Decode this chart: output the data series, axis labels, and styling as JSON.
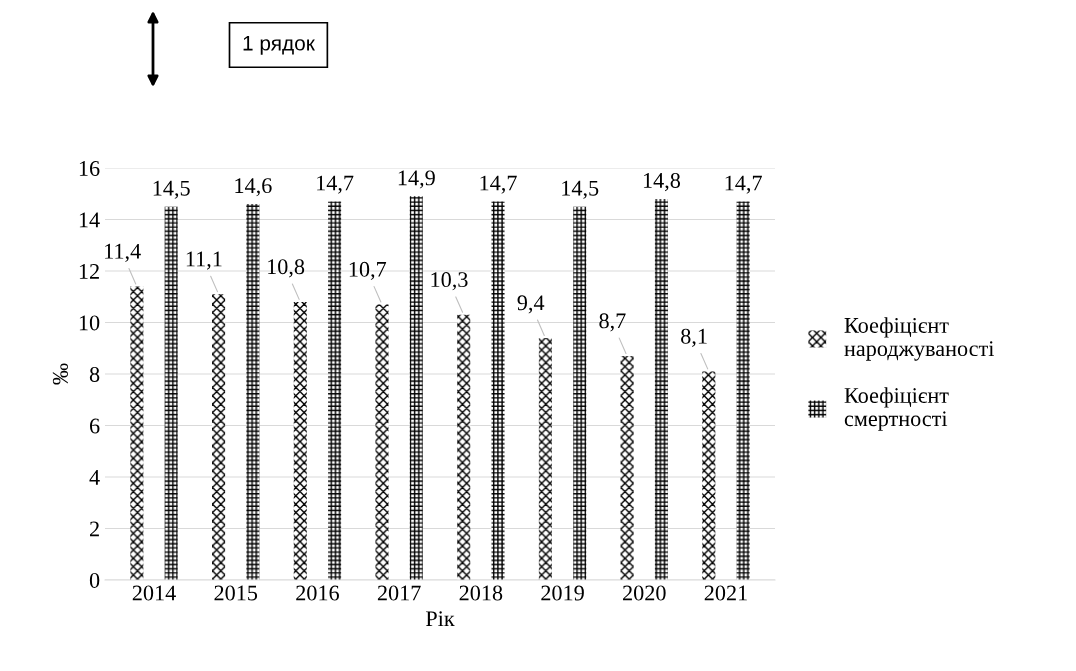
{
  "chart_data": {
    "type": "bar",
    "xlabel": "Рік",
    "ylabel": "‰",
    "categories": [
      "2014",
      "2015",
      "2016",
      "2017",
      "2018",
      "2019",
      "2020",
      "2021"
    ],
    "series": [
      {
        "name": "Коефіцієнт народжуваності",
        "color": "#000000",
        "values": [
          11.4,
          11.1,
          10.8,
          10.7,
          10.3,
          9.4,
          8.7,
          8.1
        ],
        "value_labels": [
          "11,4",
          "11,1",
          "10,8",
          "10,7",
          "10,3",
          "9,4",
          "8,7",
          "8,1"
        ]
      },
      {
        "name": "Коефіцієнт смертності",
        "color": "#000000",
        "values": [
          14.5,
          14.6,
          14.7,
          14.9,
          14.7,
          14.5,
          14.8,
          14.7
        ],
        "value_labels": [
          "14,5",
          "14,6",
          "14,7",
          "14,9",
          "14,7",
          "14,5",
          "14,8",
          "14,7"
        ]
      }
    ],
    "ylim": [
      0,
      16
    ],
    "yticks": [
      0,
      2,
      4,
      6,
      8,
      10,
      12,
      14,
      16
    ],
    "grid": "y",
    "legend": "right",
    "annotations": [
      "1 рядок"
    ]
  }
}
